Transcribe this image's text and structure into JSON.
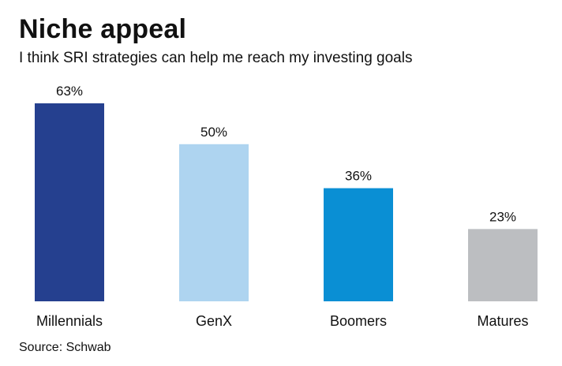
{
  "title": "Niche appeal",
  "subtitle": "I think SRI strategies can help me reach my investing goals",
  "source": "Source: Schwab",
  "chart_data": {
    "type": "bar",
    "categories": [
      "Millennials",
      "GenX",
      "Boomers",
      "Matures"
    ],
    "values": [
      63,
      50,
      36,
      23
    ],
    "value_labels": [
      "63%",
      "50%",
      "36%",
      "23%"
    ],
    "colors": [
      "#25408f",
      "#aed4f0",
      "#0a8fd4",
      "#bcbec1"
    ],
    "ylim": [
      0,
      63
    ],
    "grid": false,
    "legend": "none"
  }
}
